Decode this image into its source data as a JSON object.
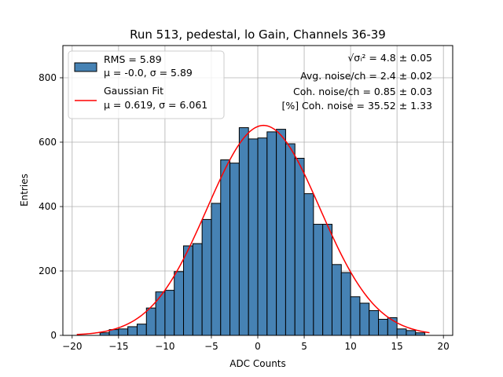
{
  "chart_data": {
    "type": "bar",
    "title": "Run 513, pedestal, lo Gain, Channels 36-39",
    "xlabel": "ADC Counts",
    "ylabel": "Entries",
    "xlim": [
      -21,
      21
    ],
    "ylim": [
      0,
      900
    ],
    "xticks": [
      -20,
      -15,
      -10,
      -5,
      0,
      5,
      10,
      15,
      20
    ],
    "yticks": [
      0,
      200,
      400,
      600,
      800
    ],
    "grid": true,
    "bin_width": 1,
    "bin_starts": [
      -17,
      -16,
      -15,
      -14,
      -13,
      -12,
      -11,
      -10,
      -9,
      -8,
      -7,
      -6,
      -5,
      -4,
      -3,
      -2,
      -1,
      0,
      1,
      2,
      3,
      4,
      5,
      6,
      7,
      8,
      9,
      10,
      11,
      12,
      13,
      14,
      15,
      16,
      17
    ],
    "counts": [
      8,
      18,
      20,
      27,
      35,
      85,
      135,
      140,
      198,
      278,
      285,
      360,
      410,
      545,
      535,
      645,
      610,
      613,
      632,
      640,
      595,
      550,
      440,
      345,
      345,
      220,
      195,
      120,
      100,
      77,
      50,
      55,
      20,
      15,
      8
    ],
    "fit": {
      "mu": 0.619,
      "sigma": 6.061,
      "amplitude": 652,
      "x_range": [
        -19.5,
        18.5
      ]
    },
    "legend": {
      "position": "upper left",
      "entries": [
        {
          "kind": "hist",
          "line1": "RMS = 5.89",
          "line2": "μ = -0.0, σ = 5.89"
        },
        {
          "kind": "line",
          "line1": "Gaussian Fit",
          "line2": "μ = 0.619, σ = 6.061"
        }
      ]
    },
    "stats": [
      "√σᵢ² = 4.8 ± 0.05",
      "Avg. noise/ch = 2.4 ± 0.02",
      "Coh. noise/ch = 0.85 ± 0.03",
      "[%] Coh. noise = 35.52 ± 1.33"
    ],
    "colors": {
      "bars": "#4682b4",
      "bar_edge": "#000000",
      "fit": "#ff0000",
      "grid": "#b0b0b0"
    }
  }
}
